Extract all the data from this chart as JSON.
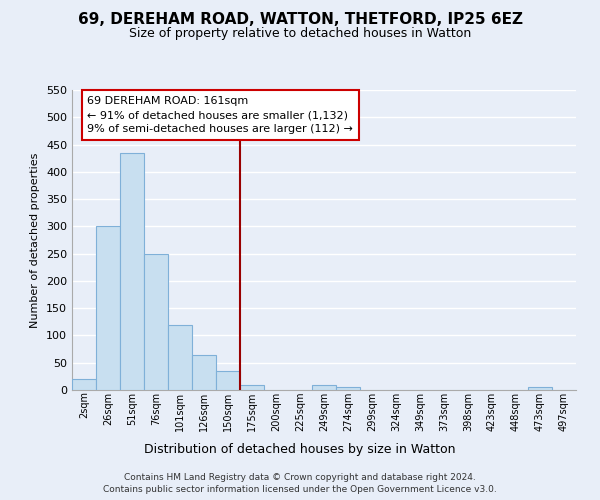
{
  "title": "69, DEREHAM ROAD, WATTON, THETFORD, IP25 6EZ",
  "subtitle": "Size of property relative to detached houses in Watton",
  "xlabel": "Distribution of detached houses by size in Watton",
  "ylabel": "Number of detached properties",
  "bar_color": "#c8dff0",
  "bar_edge_color": "#7fb0d8",
  "categories": [
    "2sqm",
    "26sqm",
    "51sqm",
    "76sqm",
    "101sqm",
    "126sqm",
    "150sqm",
    "175sqm",
    "200sqm",
    "225sqm",
    "249sqm",
    "274sqm",
    "299sqm",
    "324sqm",
    "349sqm",
    "373sqm",
    "398sqm",
    "423sqm",
    "448sqm",
    "473sqm",
    "497sqm"
  ],
  "values": [
    20,
    300,
    435,
    250,
    120,
    65,
    35,
    10,
    0,
    0,
    10,
    5,
    0,
    0,
    0,
    0,
    0,
    0,
    0,
    5,
    0
  ],
  "ylim": [
    0,
    550
  ],
  "yticks": [
    0,
    50,
    100,
    150,
    200,
    250,
    300,
    350,
    400,
    450,
    500,
    550
  ],
  "property_line_x": 7.0,
  "property_line_color": "#990000",
  "annotation_text_line1": "69 DEREHAM ROAD: 161sqm",
  "annotation_text_line2": "← 91% of detached houses are smaller (1,132)",
  "annotation_text_line3": "9% of semi-detached houses are larger (112) →",
  "footer_line1": "Contains HM Land Registry data © Crown copyright and database right 2024.",
  "footer_line2": "Contains public sector information licensed under the Open Government Licence v3.0.",
  "background_color": "#e8eef8",
  "grid_color": "#ffffff"
}
